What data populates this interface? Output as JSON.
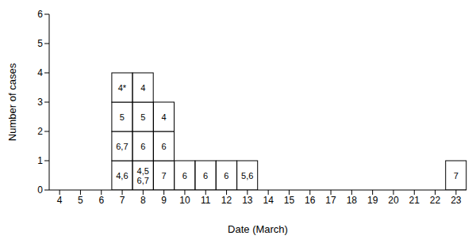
{
  "chart_data": {
    "type": "bar",
    "stacked": true,
    "x_label": "Date (March)",
    "y_label": "Number of cases",
    "categories": [
      "4",
      "5",
      "6",
      "7",
      "8",
      "9",
      "10",
      "11",
      "12",
      "13",
      "14",
      "15",
      "16",
      "17",
      "18",
      "19",
      "20",
      "21",
      "22",
      "23"
    ],
    "values": [
      0,
      0,
      0,
      4,
      4,
      3,
      1,
      1,
      1,
      1,
      0,
      0,
      0,
      0,
      0,
      0,
      0,
      0,
      0,
      1
    ],
    "box_labels": [
      [],
      [],
      [],
      [
        "4,6",
        "6,7",
        "5",
        "4*"
      ],
      [
        "4,5\n6,7",
        "6",
        "5",
        "4"
      ],
      [
        "7",
        "6",
        "4"
      ],
      [
        "6"
      ],
      [
        "6"
      ],
      [
        "6"
      ],
      [
        "5,6"
      ],
      [],
      [],
      [],
      [],
      [],
      [],
      [],
      [],
      [],
      [
        "7"
      ]
    ],
    "color": "#ffffff",
    "ylim": [
      0,
      6
    ],
    "yticks": [
      0,
      1,
      2,
      3,
      4,
      5,
      6
    ],
    "grid": false
  }
}
